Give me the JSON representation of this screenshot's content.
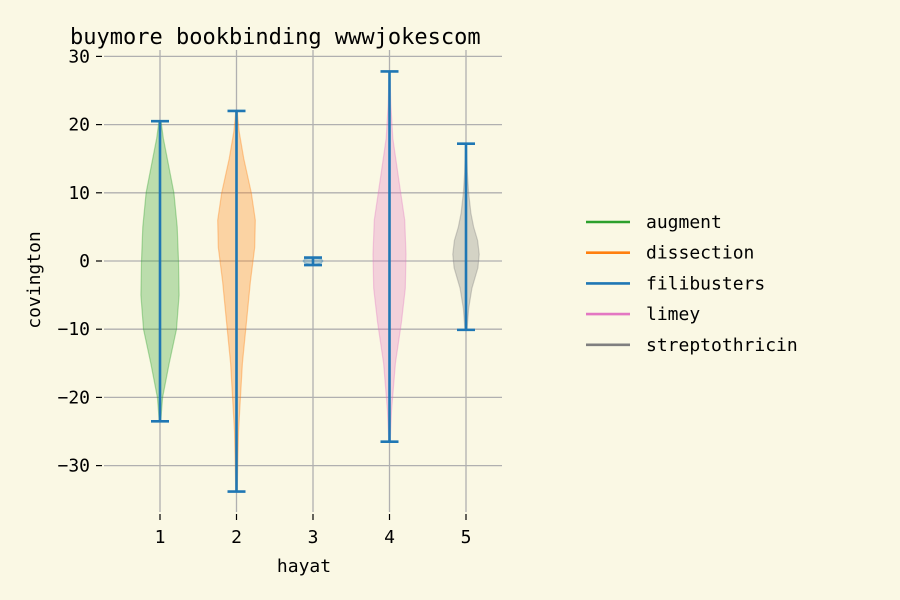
{
  "chart_data": {
    "type": "violin",
    "title": "buymore bookbinding wwwjokescom",
    "xlabel": "hayat",
    "ylabel": "covington",
    "ylim": [
      -37,
      31
    ],
    "yticks": [
      -30,
      -20,
      -10,
      0,
      10,
      20,
      30
    ],
    "categories": [
      "1",
      "2",
      "3",
      "4",
      "5"
    ],
    "grid": true,
    "legend_position": "right",
    "colors": {
      "background": "#faf8e4",
      "grid": "#b0b0b0",
      "whisker": "#1f77b4"
    },
    "legend": [
      {
        "label": "augment",
        "color": "#2ca02c"
      },
      {
        "label": "dissection",
        "color": "#ff7f0e"
      },
      {
        "label": "filibusters",
        "color": "#1f77b4"
      },
      {
        "label": "limey",
        "color": "#e377c2"
      },
      {
        "label": "streptothricin",
        "color": "#7f7f7f"
      }
    ],
    "violins": [
      {
        "x": 1,
        "min": -23.5,
        "max": 20.5,
        "fill": "#2ca02c",
        "profile": [
          [
            -23.5,
            0.2
          ],
          [
            -20,
            0.8
          ],
          [
            -15,
            2.8
          ],
          [
            -10,
            5.0
          ],
          [
            -5,
            5.8
          ],
          [
            0,
            5.6
          ],
          [
            5,
            5.2
          ],
          [
            10,
            4.2
          ],
          [
            15,
            2.2
          ],
          [
            18,
            1.0
          ],
          [
            20.5,
            0.3
          ]
        ]
      },
      {
        "x": 2,
        "min": -33.8,
        "max": 22.0,
        "fill": "#ff7f0e",
        "profile": [
          [
            -33.8,
            0.2
          ],
          [
            -25,
            0.6
          ],
          [
            -15,
            1.8
          ],
          [
            -8,
            3.2
          ],
          [
            -3,
            4.2
          ],
          [
            2,
            5.5
          ],
          [
            6,
            5.7
          ],
          [
            10,
            4.5
          ],
          [
            15,
            2.2
          ],
          [
            19,
            0.8
          ],
          [
            22,
            0.2
          ]
        ]
      },
      {
        "x": 3,
        "min": -0.6,
        "max": 0.5,
        "fill": "#1f77b4",
        "profile": [
          [
            -0.6,
            0.3
          ],
          [
            -0.3,
            2.5
          ],
          [
            0,
            3.0
          ],
          [
            0.3,
            2.5
          ],
          [
            0.5,
            0.3
          ]
        ]
      },
      {
        "x": 4,
        "min": -26.5,
        "max": 27.8,
        "fill": "#e377c2",
        "profile": [
          [
            -26.5,
            0.2
          ],
          [
            -22,
            0.6
          ],
          [
            -15,
            1.8
          ],
          [
            -9,
            3.6
          ],
          [
            -4,
            4.8
          ],
          [
            1,
            5.0
          ],
          [
            6,
            4.6
          ],
          [
            12,
            2.8
          ],
          [
            18,
            1.0
          ],
          [
            23,
            0.4
          ],
          [
            27.8,
            0.1
          ]
        ]
      },
      {
        "x": 5,
        "min": -10.1,
        "max": 17.2,
        "fill": "#7f7f7f",
        "profile": [
          [
            -10.1,
            0.3
          ],
          [
            -7,
            0.8
          ],
          [
            -4,
            1.8
          ],
          [
            -1,
            3.6
          ],
          [
            1,
            4.0
          ],
          [
            3,
            3.5
          ],
          [
            5,
            2.3
          ],
          [
            7,
            1.5
          ],
          [
            10,
            0.8
          ],
          [
            13,
            0.4
          ],
          [
            17.2,
            0.1
          ]
        ]
      }
    ]
  }
}
